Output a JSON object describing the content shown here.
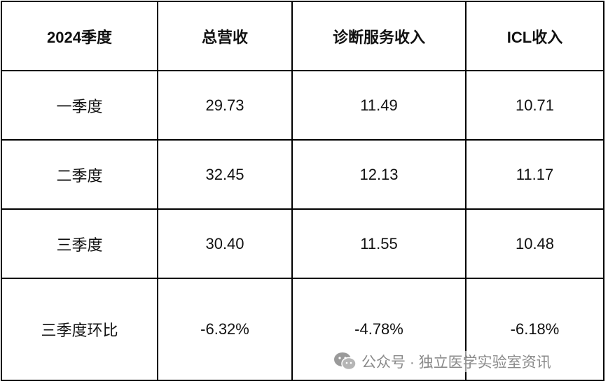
{
  "table": {
    "header": [
      "2024季度",
      "总营收",
      "诊断服务收入",
      "ICL收入"
    ],
    "rows": [
      [
        "一季度",
        "29.73",
        "11.49",
        "10.71"
      ],
      [
        "二季度",
        "32.45",
        "12.13",
        "11.17"
      ],
      [
        "三季度",
        "30.40",
        "11.55",
        "10.48"
      ],
      [
        "三季度环比",
        "-6.32%",
        "-4.78%",
        "-6.18%"
      ]
    ]
  },
  "watermark": "公众号 · 独立医学实验室资讯"
}
